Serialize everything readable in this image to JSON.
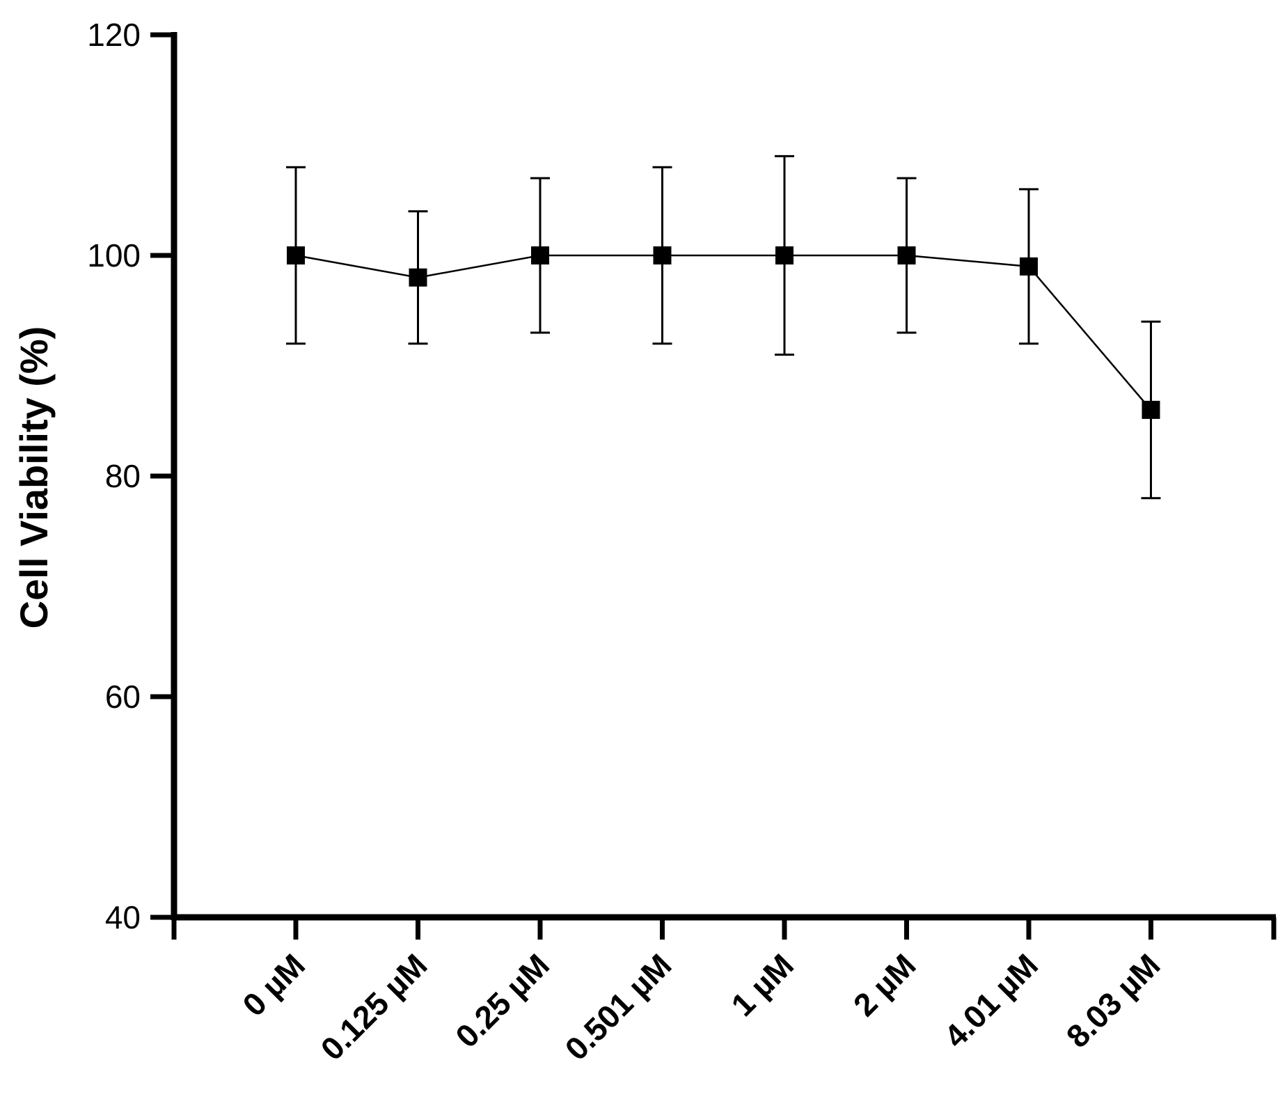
{
  "chart_data": {
    "type": "line",
    "title": "",
    "xlabel": "",
    "ylabel": "Cell Viability (%)",
    "categories": [
      "0 µM",
      "0.125 µM",
      "0.25 µM",
      "0.501 µM",
      "1 µM",
      "2 µM",
      "4.01 µM",
      "8.03 µM"
    ],
    "series": [
      {
        "values": [
          100,
          98,
          100,
          100,
          100,
          100,
          99,
          86
        ],
        "error_upper": [
          108,
          104,
          107,
          108,
          109,
          107,
          106,
          94
        ],
        "error_lower": [
          92,
          92,
          93,
          92,
          91,
          93,
          92,
          78
        ],
        "marker": "square",
        "color": "#000000"
      }
    ],
    "ylim": [
      40,
      120
    ],
    "yticks": [
      40,
      60,
      80,
      100,
      120
    ],
    "grid": false,
    "legend": "none"
  }
}
